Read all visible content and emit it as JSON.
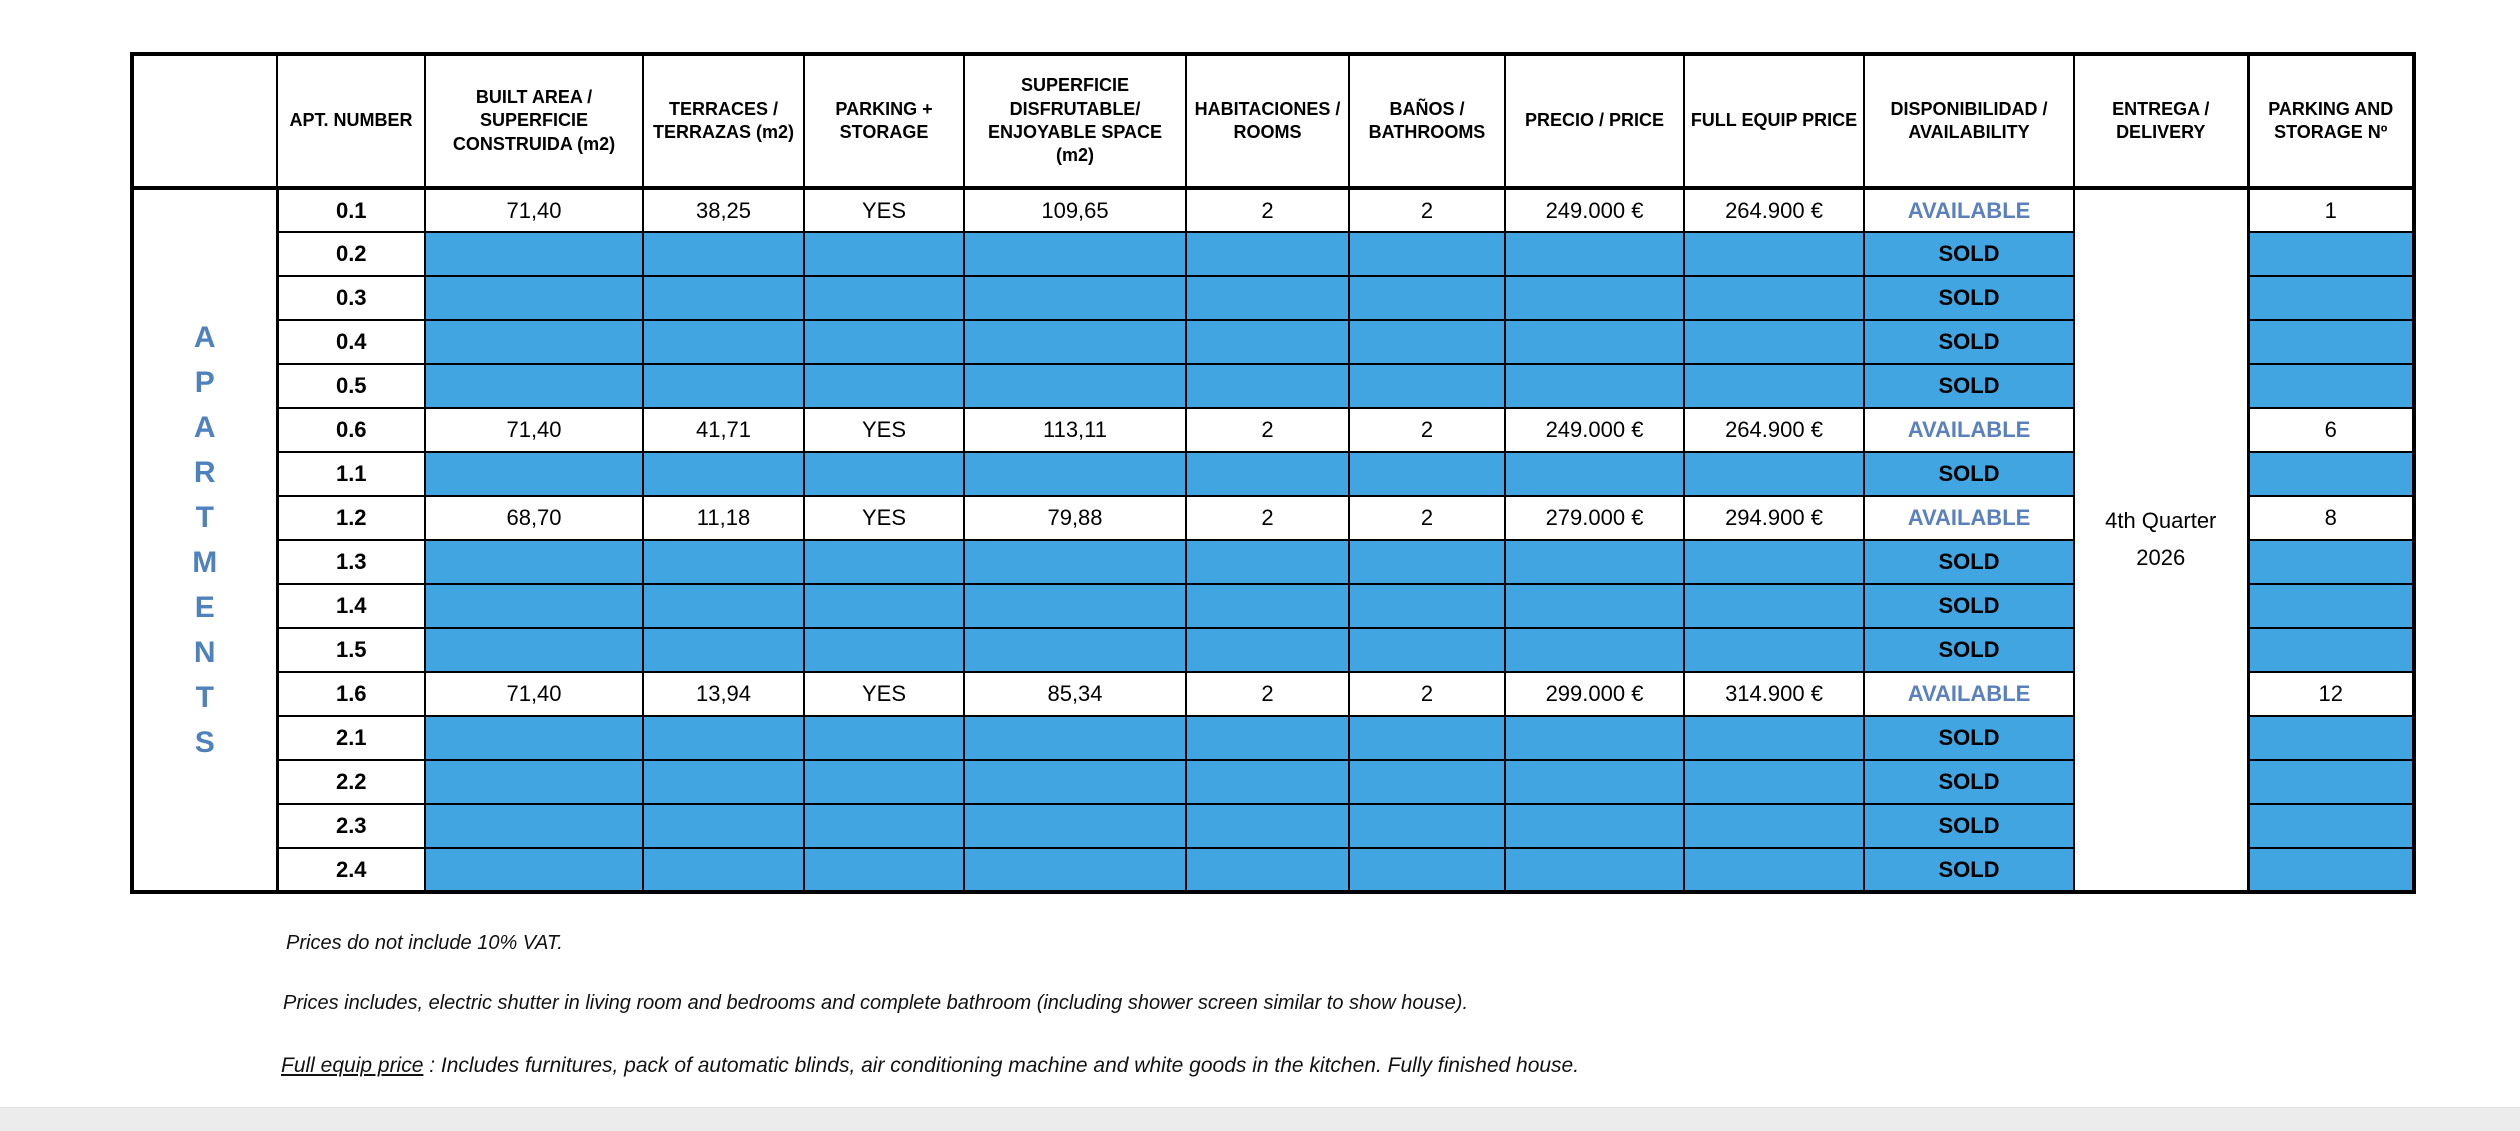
{
  "table": {
    "side_label": "APARTMENTS",
    "columns": [
      "",
      "APT. NUMBER",
      "BUILT AREA / SUPERFICIE CONSTRUIDA (m2)",
      "TERRACES / TERRAZAS (m2)",
      "PARKING + STORAGE",
      "SUPERFICIE DISFRUTABLE/ ENJOYABLE SPACE (m2)",
      "HABITACIONES / ROOMS",
      "BAÑOS / BATHROOMS",
      "PRECIO / PRICE",
      "FULL EQUIP PRICE",
      "DISPONIBILIDAD / AVAILABILITY",
      "ENTREGA / DELIVERY",
      "PARKING AND STORAGE Nº"
    ],
    "delivery": "4th Quarter 2026",
    "rows": [
      {
        "apt": "0.1",
        "built": "71,40",
        "terraces": "38,25",
        "parking": "YES",
        "enjoyable": "109,65",
        "rooms": "2",
        "baths": "2",
        "price": "249.000 €",
        "full_equip": "264.900 €",
        "availability": "AVAILABLE",
        "parking_no": "1"
      },
      {
        "apt": "0.2",
        "availability": "SOLD"
      },
      {
        "apt": "0.3",
        "availability": "SOLD"
      },
      {
        "apt": "0.4",
        "availability": "SOLD"
      },
      {
        "apt": "0.5",
        "availability": "SOLD"
      },
      {
        "apt": "0.6",
        "built": "71,40",
        "terraces": "41,71",
        "parking": "YES",
        "enjoyable": "113,11",
        "rooms": "2",
        "baths": "2",
        "price": "249.000 €",
        "full_equip": "264.900 €",
        "availability": "AVAILABLE",
        "parking_no": "6"
      },
      {
        "apt": "1.1",
        "availability": "SOLD"
      },
      {
        "apt": "1.2",
        "built": "68,70",
        "terraces": "11,18",
        "parking": "YES",
        "enjoyable": "79,88",
        "rooms": "2",
        "baths": "2",
        "price": "279.000 €",
        "full_equip": "294.900 €",
        "availability": "AVAILABLE",
        "parking_no": "8"
      },
      {
        "apt": "1.3",
        "availability": "SOLD"
      },
      {
        "apt": "1.4",
        "availability": "SOLD"
      },
      {
        "apt": "1.5",
        "availability": "SOLD"
      },
      {
        "apt": "1.6",
        "built": "71,40",
        "terraces": "13,94",
        "parking": "YES",
        "enjoyable": "85,34",
        "rooms": "2",
        "baths": "2",
        "price": "299.000 €",
        "full_equip": "314.900 €",
        "availability": "AVAILABLE",
        "parking_no": "12"
      },
      {
        "apt": "2.1",
        "availability": "SOLD"
      },
      {
        "apt": "2.2",
        "availability": "SOLD"
      },
      {
        "apt": "2.3",
        "availability": "SOLD"
      },
      {
        "apt": "2.4",
        "availability": "SOLD"
      }
    ]
  },
  "notes": {
    "vat": "Prices do not include 10% VAT.",
    "includes": "Prices includes, electric shutter in living room and bedrooms and complete bathroom (including shower screen similar to show house).",
    "full_equip_lead": "Full equip price",
    "full_equip_rest": " : Includes furnitures, pack of automatic blinds, air conditioning machine and white goods in the kitchen. Fully finished house."
  },
  "colors": {
    "sold_bg": "#41A5E1",
    "available_text": "#5B80BE",
    "side_label_text": "#4F81BD"
  }
}
